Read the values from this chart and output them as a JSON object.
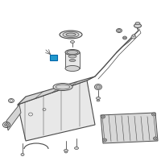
{
  "bg_color": "#ffffff",
  "line_color": "#4a4a4a",
  "fill_light": "#e8e8e8",
  "fill_mid": "#d4d4d4",
  "fill_dark": "#c0c0c0",
  "highlight_color": "#2299cc",
  "figsize": [
    2.0,
    2.0
  ],
  "dpi": 100
}
